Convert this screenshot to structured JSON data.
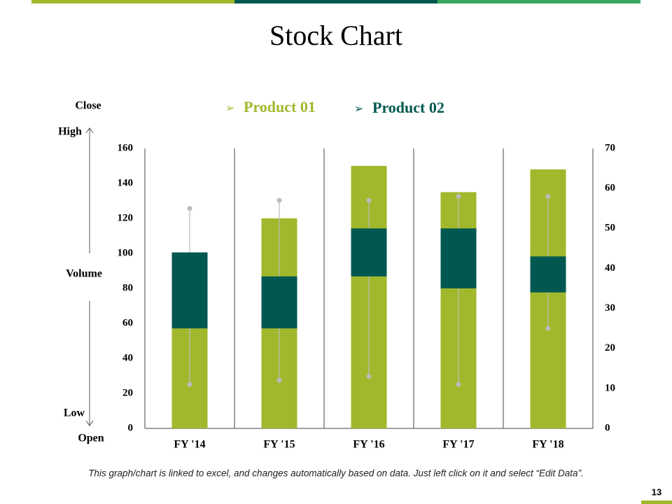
{
  "title": "Stock Chart",
  "chart_data": {
    "type": "stock",
    "categories": [
      "FY '14",
      "FY '15",
      "FY '16",
      "FY '17",
      "FY '18"
    ],
    "axis_labels": [
      "Close",
      "High",
      "Volume",
      "Low",
      "Open"
    ],
    "ylim": [
      0,
      160
    ],
    "yticks": [
      0,
      20,
      40,
      60,
      80,
      100,
      120,
      140,
      160
    ],
    "y2lim": [
      0,
      70
    ],
    "y2ticks": [
      0,
      10,
      20,
      30,
      40,
      50,
      60,
      70
    ],
    "series": [
      {
        "name": "Product 01",
        "color": "#a2b82c",
        "values": [
          100,
          120,
          150,
          135,
          148
        ]
      },
      {
        "name": "Product 02",
        "color": "#005850",
        "axis": "y2",
        "open": [
          25,
          25,
          38,
          35,
          34
        ],
        "high": [
          55,
          57,
          57,
          58,
          58
        ],
        "low": [
          11,
          12,
          13,
          11,
          25
        ],
        "close": [
          44,
          38,
          50,
          50,
          43
        ]
      }
    ]
  },
  "footnote": "This graph/chart is linked to excel, and changes automatically based on data. Just left click on it and select “Edit Data”.",
  "page_number": "13"
}
